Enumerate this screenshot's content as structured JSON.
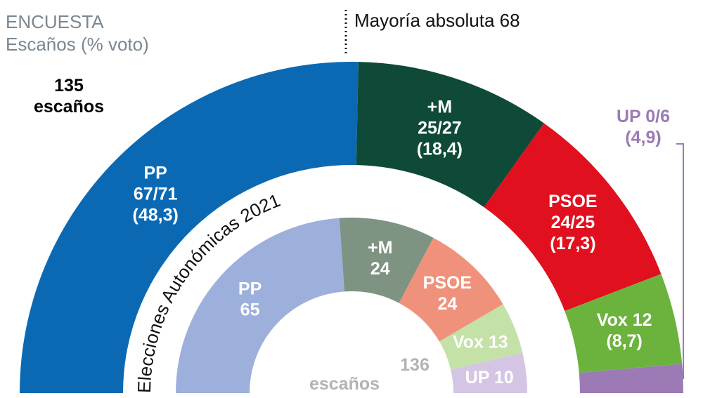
{
  "chart_data": [
    {
      "type": "hemicycle",
      "title": "ENCUESTA",
      "subtitle": "Escaños (% voto)",
      "total": 135,
      "total_unit": "escaños",
      "majority_label": "Mayoría absoluta 68",
      "categories": [
        "PP",
        "+M",
        "PSOE",
        "Vox",
        "UP"
      ],
      "values": [
        68.4,
        25.7,
        25.1,
        12,
        3.8
      ],
      "seat_labels": [
        "67/71",
        "25/27",
        "24/25",
        "12",
        "0/6"
      ],
      "vote_labels": [
        "(48,3)",
        "(18,4)",
        "(17,3)",
        "(8,7)",
        "(4,9)"
      ],
      "colors": [
        "#0b69b4",
        "#0e4a37",
        "#e1101e",
        "#6cb33e",
        "#9b7ab6"
      ]
    },
    {
      "type": "hemicycle",
      "title": "Elecciones Autonómicas 2021",
      "total": 136,
      "total_unit": "escaños",
      "categories": [
        "PP",
        "+M",
        "PSOE",
        "Vox",
        "UP"
      ],
      "values": [
        65,
        24,
        24,
        13,
        10
      ],
      "colors": [
        "#9db0dc",
        "#7f9383",
        "#f0927b",
        "#c4e1a7",
        "#d4c5e4"
      ]
    }
  ]
}
